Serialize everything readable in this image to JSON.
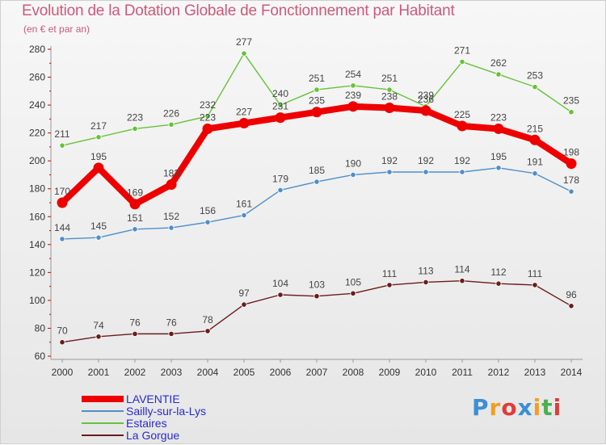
{
  "title": "Evolution de la Dotation Globale de Fonctionnement par Habitant",
  "subtitle": "(en € et par an)",
  "chart_data": {
    "type": "line",
    "x": [
      "2000",
      "2001",
      "2002",
      "2003",
      "2004",
      "2005",
      "2006",
      "2007",
      "2008",
      "2009",
      "2010",
      "2011",
      "2012",
      "2013",
      "2014"
    ],
    "ylim": [
      60,
      280
    ],
    "yticks": [
      "60",
      "80",
      "100",
      "120",
      "140",
      "160",
      "180",
      "200",
      "220",
      "240",
      "260",
      "280"
    ],
    "grid": false,
    "legend_placement": "bottom-left",
    "series": [
      {
        "name": "LAVENTIE",
        "color": "#ee0000",
        "values": [
          170,
          195,
          169,
          183,
          223,
          227,
          231,
          235,
          239,
          238,
          236,
          225,
          223,
          215,
          198
        ]
      },
      {
        "name": "Sailly-sur-la-Lys",
        "color": "#4f8fc9",
        "values": [
          144,
          145,
          151,
          152,
          156,
          161,
          179,
          185,
          190,
          192,
          192,
          192,
          195,
          191,
          178
        ]
      },
      {
        "name": "Estaires",
        "color": "#66c23a",
        "values": [
          211,
          217,
          223,
          226,
          232,
          277,
          240,
          251,
          254,
          251,
          239,
          271,
          262,
          253,
          235
        ]
      },
      {
        "name": "La Gorgue",
        "color": "#6b1c1c",
        "values": [
          70,
          74,
          76,
          76,
          78,
          97,
          104,
          103,
          105,
          111,
          113,
          114,
          112,
          111,
          96
        ]
      }
    ]
  },
  "logo": {
    "letters": [
      "P",
      "r",
      "o",
      "x",
      "i",
      "t",
      "i"
    ],
    "colors": [
      "#3a8fd6",
      "#f0a020",
      "#e23b3b",
      "#3a8fd6",
      "#f0a020",
      "#4caf50",
      "#e23b3b"
    ]
  }
}
